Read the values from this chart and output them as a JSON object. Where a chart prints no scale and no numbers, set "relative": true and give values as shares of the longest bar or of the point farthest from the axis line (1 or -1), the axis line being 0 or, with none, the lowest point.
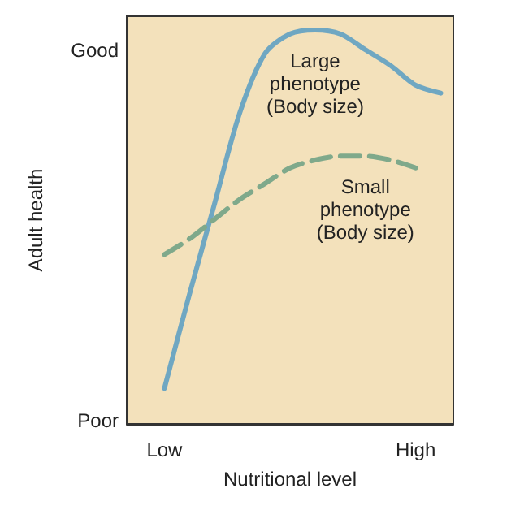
{
  "chart_data": {
    "type": "line",
    "xlabel": "Nutritional level",
    "ylabel": "Adult health",
    "relative": true,
    "categories": [
      null,
      "Low",
      null,
      null,
      null,
      null,
      null,
      null,
      null,
      null,
      null,
      "High",
      null
    ],
    "annotations": [
      "Good",
      "Poor"
    ],
    "grid": false,
    "legend": false,
    "marker": "none",
    "series": [
      {
        "name": "Large\nphenotype\n(Body size)",
        "color": "#6fa7c2",
        "line_style": "solid",
        "values": [
          null,
          0.09,
          0.33,
          0.56,
          0.79,
          0.94,
          0.99,
          1.0,
          0.99,
          0.95,
          0.91,
          0.86,
          0.84
        ]
      },
      {
        "name": "Small\nphenotype\n(Body size)",
        "color": "#7fa98b",
        "line_style": "dashed",
        "values": [
          null,
          0.43,
          0.47,
          0.52,
          0.57,
          0.61,
          0.65,
          0.67,
          0.68,
          0.68,
          0.67,
          0.65,
          null
        ]
      }
    ]
  }
}
